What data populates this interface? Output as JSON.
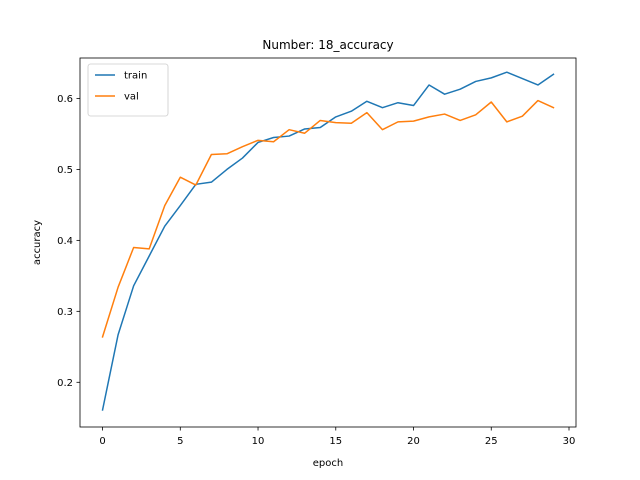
{
  "chart_data": {
    "type": "line",
    "title": "Number: 18_accuracy",
    "xlabel": "epoch",
    "ylabel": "accuracy",
    "xlim": [
      -1.45,
      30.45
    ],
    "ylim": [
      0.137,
      0.657
    ],
    "xticks": [
      0,
      5,
      10,
      15,
      20,
      25,
      30
    ],
    "yticks": [
      0.2,
      0.3,
      0.4,
      0.5,
      0.6
    ],
    "xtick_labels": [
      "0",
      "5",
      "10",
      "15",
      "20",
      "25",
      "30"
    ],
    "ytick_labels": [
      "0.2",
      "0.3",
      "0.4",
      "0.5",
      "0.6"
    ],
    "grid": false,
    "legend_position": "top-left",
    "x": [
      0,
      1,
      2,
      3,
      4,
      5,
      6,
      7,
      8,
      9,
      10,
      11,
      12,
      13,
      14,
      15,
      16,
      17,
      18,
      19,
      20,
      21,
      22,
      23,
      24,
      25,
      26,
      27,
      28,
      29
    ],
    "series": [
      {
        "name": "train",
        "color": "#1f77b4",
        "values": [
          0.161,
          0.267,
          0.336,
          0.378,
          0.42,
          0.449,
          0.479,
          0.482,
          0.5,
          0.516,
          0.538,
          0.545,
          0.547,
          0.557,
          0.559,
          0.574,
          0.582,
          0.596,
          0.587,
          0.594,
          0.59,
          0.619,
          0.606,
          0.613,
          0.624,
          0.629,
          0.637,
          0.628,
          0.619,
          0.634
        ]
      },
      {
        "name": "val",
        "color": "#ff7f0e",
        "values": [
          0.264,
          0.334,
          0.39,
          0.388,
          0.449,
          0.489,
          0.478,
          0.521,
          0.522,
          0.532,
          0.541,
          0.539,
          0.556,
          0.551,
          0.569,
          0.566,
          0.565,
          0.58,
          0.556,
          0.567,
          0.568,
          0.574,
          0.578,
          0.569,
          0.577,
          0.595,
          0.567,
          0.575,
          0.597,
          0.587
        ]
      }
    ]
  }
}
